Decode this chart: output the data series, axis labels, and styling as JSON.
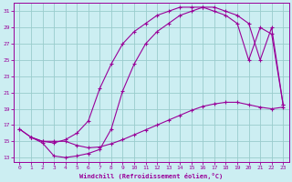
{
  "xlabel": "Windchill (Refroidissement éolien,°C)",
  "bg_color": "#cceef2",
  "line_color": "#990099",
  "grid_color": "#99cccc",
  "xlim": [
    -0.5,
    23.5
  ],
  "ylim": [
    12.5,
    32
  ],
  "xticks": [
    0,
    1,
    2,
    3,
    4,
    5,
    6,
    7,
    8,
    9,
    10,
    11,
    12,
    13,
    14,
    15,
    16,
    17,
    18,
    19,
    20,
    21,
    22,
    23
  ],
  "yticks": [
    13,
    15,
    17,
    19,
    21,
    23,
    25,
    27,
    29,
    31
  ],
  "line1_x": [
    0,
    1,
    2,
    3,
    4,
    5,
    6,
    7,
    8,
    9,
    10,
    11,
    12,
    13,
    14,
    15,
    16,
    17,
    18,
    19,
    20,
    21,
    22,
    23
  ],
  "line1_y": [
    16.5,
    15.5,
    15.0,
    15.0,
    15.0,
    14.5,
    14.2,
    14.3,
    14.7,
    15.2,
    15.8,
    16.4,
    17.0,
    17.6,
    18.2,
    18.8,
    19.3,
    19.6,
    19.8,
    19.8,
    19.5,
    19.2,
    19.0,
    19.2
  ],
  "line2_x": [
    0,
    1,
    2,
    3,
    4,
    5,
    6,
    7,
    8,
    9,
    10,
    11,
    12,
    13,
    14,
    15,
    16,
    17,
    18,
    19,
    20,
    21,
    22,
    23
  ],
  "line2_y": [
    16.5,
    15.5,
    15.0,
    14.8,
    15.2,
    16.0,
    17.5,
    21.5,
    24.5,
    27.0,
    28.5,
    29.5,
    30.5,
    31.0,
    31.5,
    31.5,
    31.5,
    31.0,
    30.5,
    29.5,
    25.0,
    29.0,
    28.2,
    19.5
  ],
  "line3_x": [
    1,
    2,
    3,
    4,
    5,
    6,
    7,
    8,
    9,
    10,
    11,
    12,
    13,
    14,
    15,
    16,
    17,
    18,
    19,
    20,
    21,
    22,
    23
  ],
  "line3_y": [
    15.5,
    14.8,
    13.2,
    13.0,
    13.2,
    13.5,
    14.0,
    16.5,
    21.2,
    24.5,
    27.0,
    28.5,
    29.5,
    30.5,
    31.0,
    31.5,
    31.5,
    31.0,
    30.5,
    29.5,
    25.0,
    29.0,
    19.5
  ]
}
